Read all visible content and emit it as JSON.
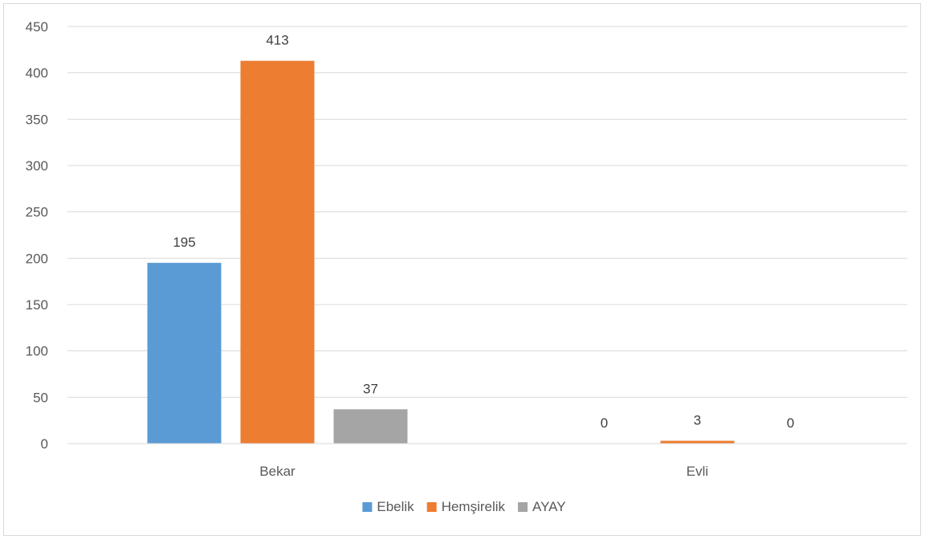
{
  "chart_data": {
    "type": "bar",
    "categories": [
      "Bekar",
      "Evli"
    ],
    "series": [
      {
        "name": "Ebelik",
        "values": [
          195,
          0
        ],
        "color": "#5b9bd5"
      },
      {
        "name": "Hemşirelik",
        "values": [
          413,
          3
        ],
        "color": "#ed7d31"
      },
      {
        "name": "AYAY",
        "values": [
          37,
          0
        ],
        "color": "#a5a5a5"
      }
    ],
    "ylim": [
      0,
      450
    ],
    "yticks": [
      "0",
      "50",
      "100",
      "150",
      "200",
      "250",
      "300",
      "350",
      "400",
      "450"
    ],
    "grid": true,
    "legend_position": "bottom",
    "data_labels": true
  }
}
